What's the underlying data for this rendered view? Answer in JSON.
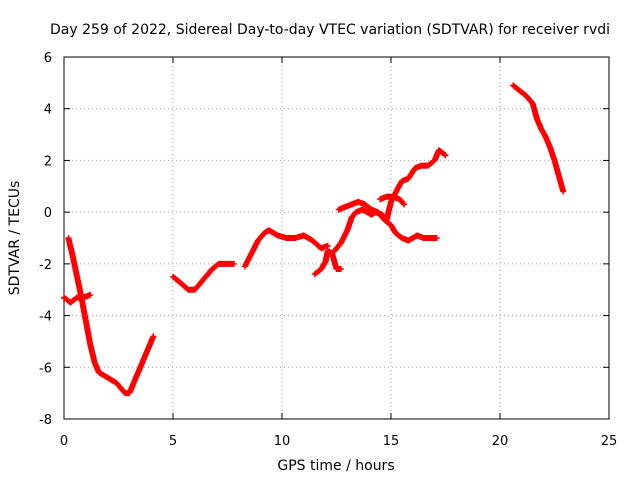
{
  "chart_data": {
    "type": "scatter",
    "title": "Day 259 of 2022, Sidereal Day-to-day VTEC variation (SDTVAR) for receiver rvdi",
    "xlabel": "GPS time / hours",
    "ylabel": "SDTVAR / TECUs",
    "xlim": [
      0,
      25
    ],
    "ylim": [
      -8,
      6
    ],
    "xticks": [
      "0",
      "5",
      "10",
      "15",
      "20",
      "25"
    ],
    "yticks": [
      "-8",
      "-6",
      "-4",
      "-2",
      "0",
      "2",
      "4",
      "6"
    ],
    "grid": true,
    "marker": "+",
    "color": "#ff0000",
    "series": [
      {
        "points": [
          [
            0.0,
            -3.3
          ],
          [
            0.3,
            -3.5
          ],
          [
            0.6,
            -3.3
          ],
          [
            0.9,
            -3.3
          ],
          [
            1.2,
            -3.2
          ]
        ]
      },
      {
        "points": [
          [
            0.2,
            -1.0
          ],
          [
            0.4,
            -1.7
          ],
          [
            0.6,
            -2.5
          ],
          [
            0.8,
            -3.3
          ],
          [
            1.0,
            -4.2
          ],
          [
            1.2,
            -5.1
          ],
          [
            1.4,
            -5.8
          ],
          [
            1.6,
            -6.2
          ],
          [
            2.0,
            -6.4
          ],
          [
            2.4,
            -6.6
          ],
          [
            2.8,
            -7.0
          ],
          [
            3.0,
            -7.0
          ],
          [
            3.3,
            -6.4
          ],
          [
            3.6,
            -5.8
          ],
          [
            3.9,
            -5.2
          ],
          [
            4.1,
            -4.8
          ]
        ]
      },
      {
        "points": [
          [
            5.0,
            -2.5
          ],
          [
            5.3,
            -2.7
          ],
          [
            5.7,
            -3.0
          ],
          [
            6.0,
            -3.0
          ],
          [
            6.4,
            -2.6
          ],
          [
            6.8,
            -2.2
          ],
          [
            7.1,
            -2.0
          ],
          [
            7.5,
            -2.0
          ],
          [
            7.8,
            -2.0
          ]
        ]
      },
      {
        "points": [
          [
            8.3,
            -2.1
          ],
          [
            8.6,
            -1.6
          ],
          [
            8.9,
            -1.1
          ],
          [
            9.2,
            -0.8
          ],
          [
            9.4,
            -0.7
          ],
          [
            9.8,
            -0.9
          ],
          [
            10.2,
            -1.0
          ],
          [
            10.6,
            -1.0
          ],
          [
            11.0,
            -0.9
          ],
          [
            11.4,
            -1.1
          ],
          [
            11.8,
            -1.4
          ],
          [
            12.1,
            -1.3
          ]
        ]
      },
      {
        "points": [
          [
            11.5,
            -2.4
          ],
          [
            11.8,
            -2.2
          ],
          [
            12.0,
            -1.9
          ],
          [
            12.1,
            -1.5
          ],
          [
            12.3,
            -1.6
          ],
          [
            12.5,
            -2.2
          ],
          [
            12.7,
            -2.2
          ]
        ]
      },
      {
        "points": [
          [
            12.4,
            -1.5
          ],
          [
            12.7,
            -1.2
          ],
          [
            13.0,
            -0.7
          ],
          [
            13.2,
            -0.2
          ],
          [
            13.4,
            0.0
          ],
          [
            13.7,
            0.1
          ],
          [
            13.9,
            0.0
          ],
          [
            14.1,
            -0.1
          ],
          [
            14.3,
            0.0
          ],
          [
            14.6,
            -0.1
          ],
          [
            14.8,
            -0.3
          ],
          [
            15.0,
            0.4
          ],
          [
            15.3,
            0.9
          ],
          [
            15.5,
            1.2
          ],
          [
            15.8,
            1.3
          ],
          [
            16.1,
            1.7
          ],
          [
            16.4,
            1.8
          ],
          [
            16.7,
            1.8
          ],
          [
            17.0,
            2.0
          ],
          [
            17.2,
            2.4
          ],
          [
            17.5,
            2.2
          ]
        ]
      },
      {
        "points": [
          [
            12.6,
            0.1
          ],
          [
            12.9,
            0.2
          ],
          [
            13.2,
            0.3
          ],
          [
            13.5,
            0.4
          ],
          [
            13.8,
            0.3
          ],
          [
            14.1,
            0.1
          ],
          [
            14.4,
            0.0
          ],
          [
            14.7,
            -0.3
          ],
          [
            15.0,
            -0.5
          ],
          [
            15.2,
            -0.8
          ],
          [
            15.5,
            -1.0
          ],
          [
            15.8,
            -1.1
          ],
          [
            16.2,
            -0.9
          ],
          [
            16.5,
            -1.0
          ],
          [
            16.8,
            -1.0
          ],
          [
            17.1,
            -1.0
          ]
        ]
      },
      {
        "points": [
          [
            14.5,
            0.5
          ],
          [
            14.8,
            0.6
          ],
          [
            15.1,
            0.6
          ],
          [
            15.4,
            0.5
          ],
          [
            15.6,
            0.3
          ]
        ]
      },
      {
        "points": [
          [
            20.6,
            4.9
          ],
          [
            20.9,
            4.7
          ],
          [
            21.2,
            4.5
          ],
          [
            21.5,
            4.2
          ],
          [
            21.7,
            3.6
          ],
          [
            21.9,
            3.2
          ],
          [
            22.1,
            2.9
          ],
          [
            22.3,
            2.5
          ],
          [
            22.5,
            2.0
          ],
          [
            22.7,
            1.4
          ],
          [
            22.9,
            0.8
          ]
        ]
      }
    ]
  }
}
